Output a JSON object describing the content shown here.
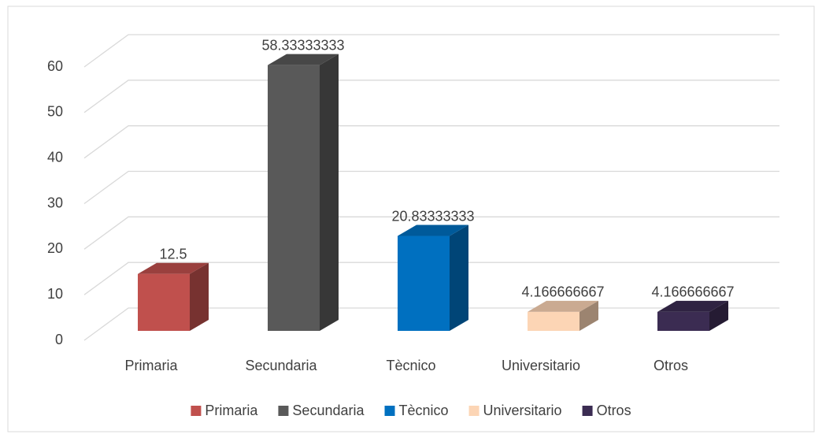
{
  "chart_data": {
    "type": "bar3d",
    "categories": [
      "Primaria",
      "Secundaria",
      "Tècnico",
      "Universitario",
      "Otros"
    ],
    "values": [
      12.5,
      58.33333333,
      20.83333333,
      4.166666667,
      4.166666667
    ],
    "colors": [
      "#c0504d",
      "#595959",
      "#0070c0",
      "#fcd5b5",
      "#3b2c52"
    ],
    "ylim": [
      0,
      60
    ],
    "yticks": [
      0,
      10,
      20,
      30,
      40,
      50,
      60
    ],
    "grid": true,
    "legend": "bottom"
  }
}
